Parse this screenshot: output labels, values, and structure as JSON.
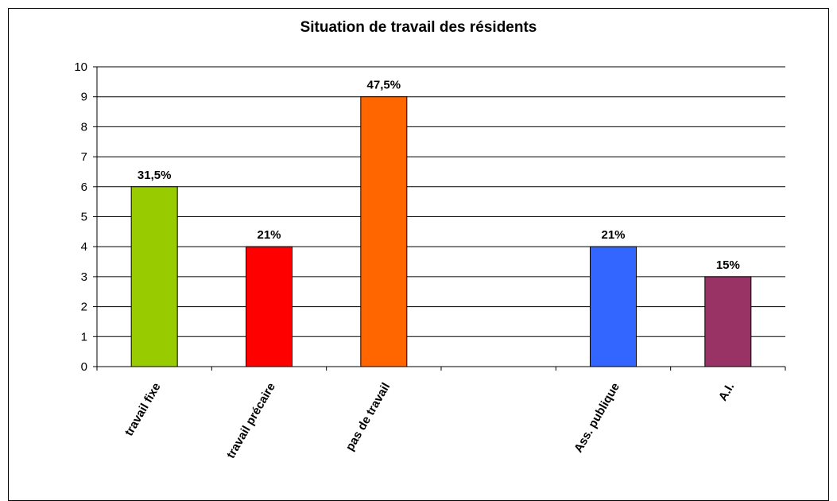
{
  "chart_data": {
    "type": "bar",
    "title": "Situation de travail des résidents",
    "categories": [
      "travail fixe",
      "travail précaire",
      "pas de travail",
      "",
      "Ass. publique",
      "A.I."
    ],
    "values": [
      6,
      4,
      9,
      null,
      4,
      3
    ],
    "data_labels": [
      "31,5%",
      "21%",
      "47,5%",
      "",
      "21%",
      "15%"
    ],
    "colors": [
      "#99cc00",
      "#ff0000",
      "#ff6600",
      "",
      "#3366ff",
      "#993366"
    ],
    "ylim": [
      0,
      10
    ],
    "yticks": [
      "0",
      "1",
      "2",
      "3",
      "4",
      "5",
      "6",
      "7",
      "8",
      "9",
      "10"
    ],
    "xlabel": "",
    "ylabel": "",
    "grid": true,
    "legend": "none"
  }
}
